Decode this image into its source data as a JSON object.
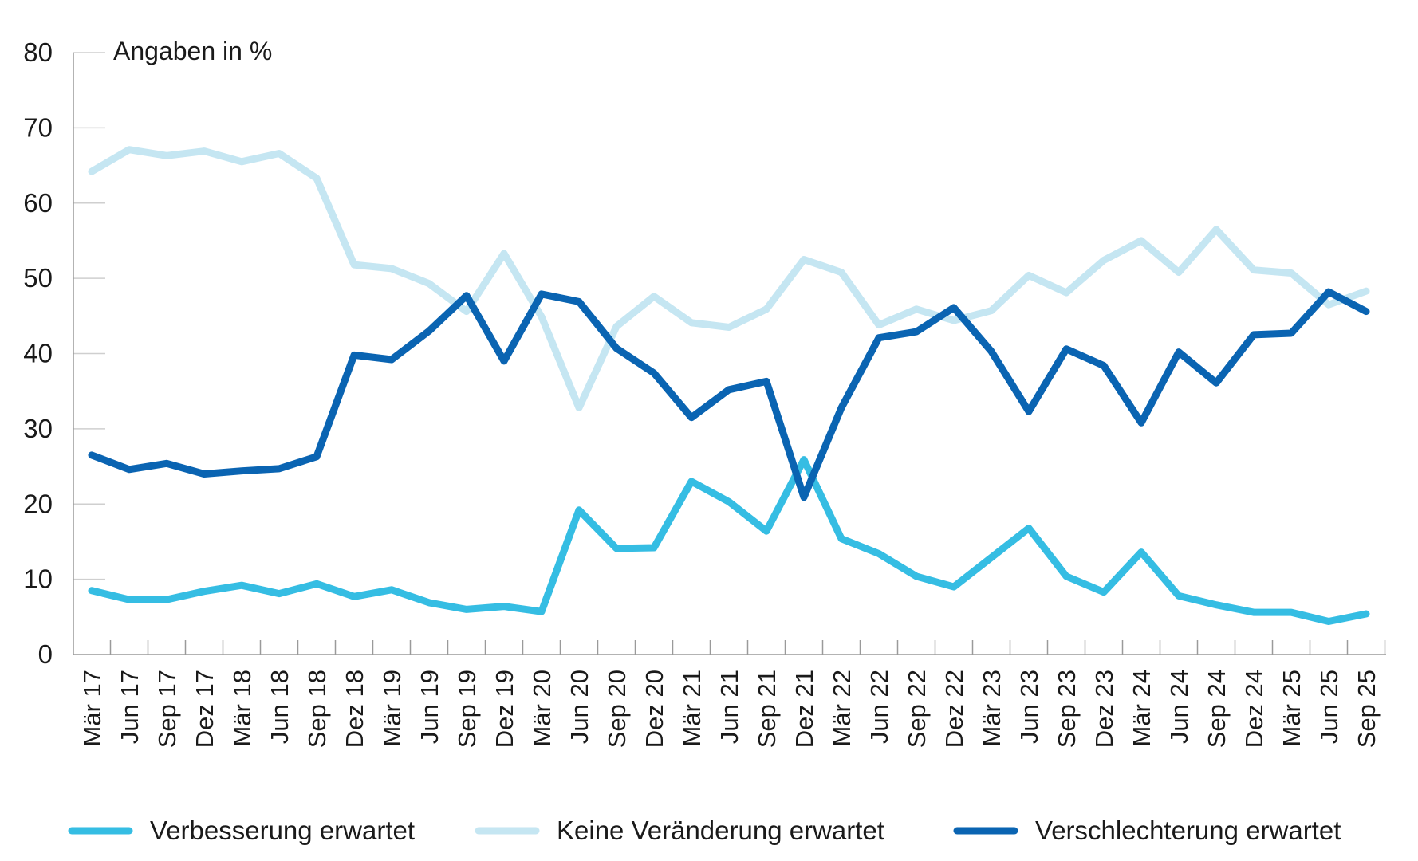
{
  "chart_data": {
    "type": "line",
    "title": "",
    "unit_label": "Angaben in %",
    "xlabel": "",
    "ylabel": "",
    "ylim": [
      0,
      80
    ],
    "y_ticks": [
      0,
      10,
      20,
      30,
      40,
      50,
      60,
      70,
      80
    ],
    "grid": "horizontal",
    "legend_position": "bottom",
    "categories": [
      "Mär 17",
      "Jun 17",
      "Sep 17",
      "Dez 17",
      "Mär 18",
      "Jun 18",
      "Sep 18",
      "Dez 18",
      "Mär 19",
      "Jun 19",
      "Sep 19",
      "Dez 19",
      "Mär 20",
      "Jun 20",
      "Sep 20",
      "Dez 20",
      "Mär 21",
      "Jun 21",
      "Sep 21",
      "Dez 21",
      "Mär 22",
      "Jun 22",
      "Sep 22",
      "Dez 22",
      "Mär 23",
      "Jun 23",
      "Sep 23",
      "Dez 23",
      "Mär 24",
      "Jun 24",
      "Sep 24",
      "Dez 24",
      "Mär 25",
      "Jun 25",
      "Sep 25"
    ],
    "series": [
      {
        "name": "Verbesserung erwartet",
        "color": "#35bde3",
        "values": [
          8.5,
          7.3,
          7.3,
          8.4,
          9.2,
          8.1,
          9.4,
          7.7,
          8.6,
          6.9,
          6.0,
          6.4,
          5.7,
          19.2,
          14.1,
          14.2,
          23.0,
          20.3,
          16.4,
          25.9,
          15.4,
          13.4,
          10.4,
          9.0,
          12.9,
          16.8,
          10.4,
          8.3,
          13.6,
          7.8,
          6.6,
          5.6,
          5.6,
          4.4,
          5.4
        ]
      },
      {
        "name": "Keine Veränderung erwartet",
        "color": "#c5e6f2",
        "values": [
          64.2,
          67.1,
          66.3,
          66.9,
          65.5,
          66.6,
          63.3,
          51.8,
          51.3,
          49.3,
          45.6,
          53.3,
          44.9,
          32.8,
          43.6,
          47.6,
          44.1,
          43.5,
          45.9,
          52.5,
          50.8,
          43.8,
          45.9,
          44.4,
          45.7,
          50.4,
          48.1,
          52.4,
          55.0,
          50.8,
          56.5,
          51.1,
          50.7,
          46.5,
          48.3
        ]
      },
      {
        "name": "Verschlechterung erwartet",
        "color": "#0a64b2",
        "values": [
          26.5,
          24.6,
          25.4,
          24.0,
          24.4,
          24.7,
          26.3,
          39.8,
          39.2,
          43.0,
          47.7,
          39.0,
          47.9,
          46.9,
          40.7,
          37.4,
          31.5,
          35.2,
          36.3,
          20.9,
          32.8,
          42.1,
          42.9,
          46.1,
          40.3,
          32.3,
          40.6,
          38.4,
          30.8,
          40.2,
          36.1,
          42.5,
          42.7,
          48.2,
          45.6
        ]
      }
    ]
  }
}
